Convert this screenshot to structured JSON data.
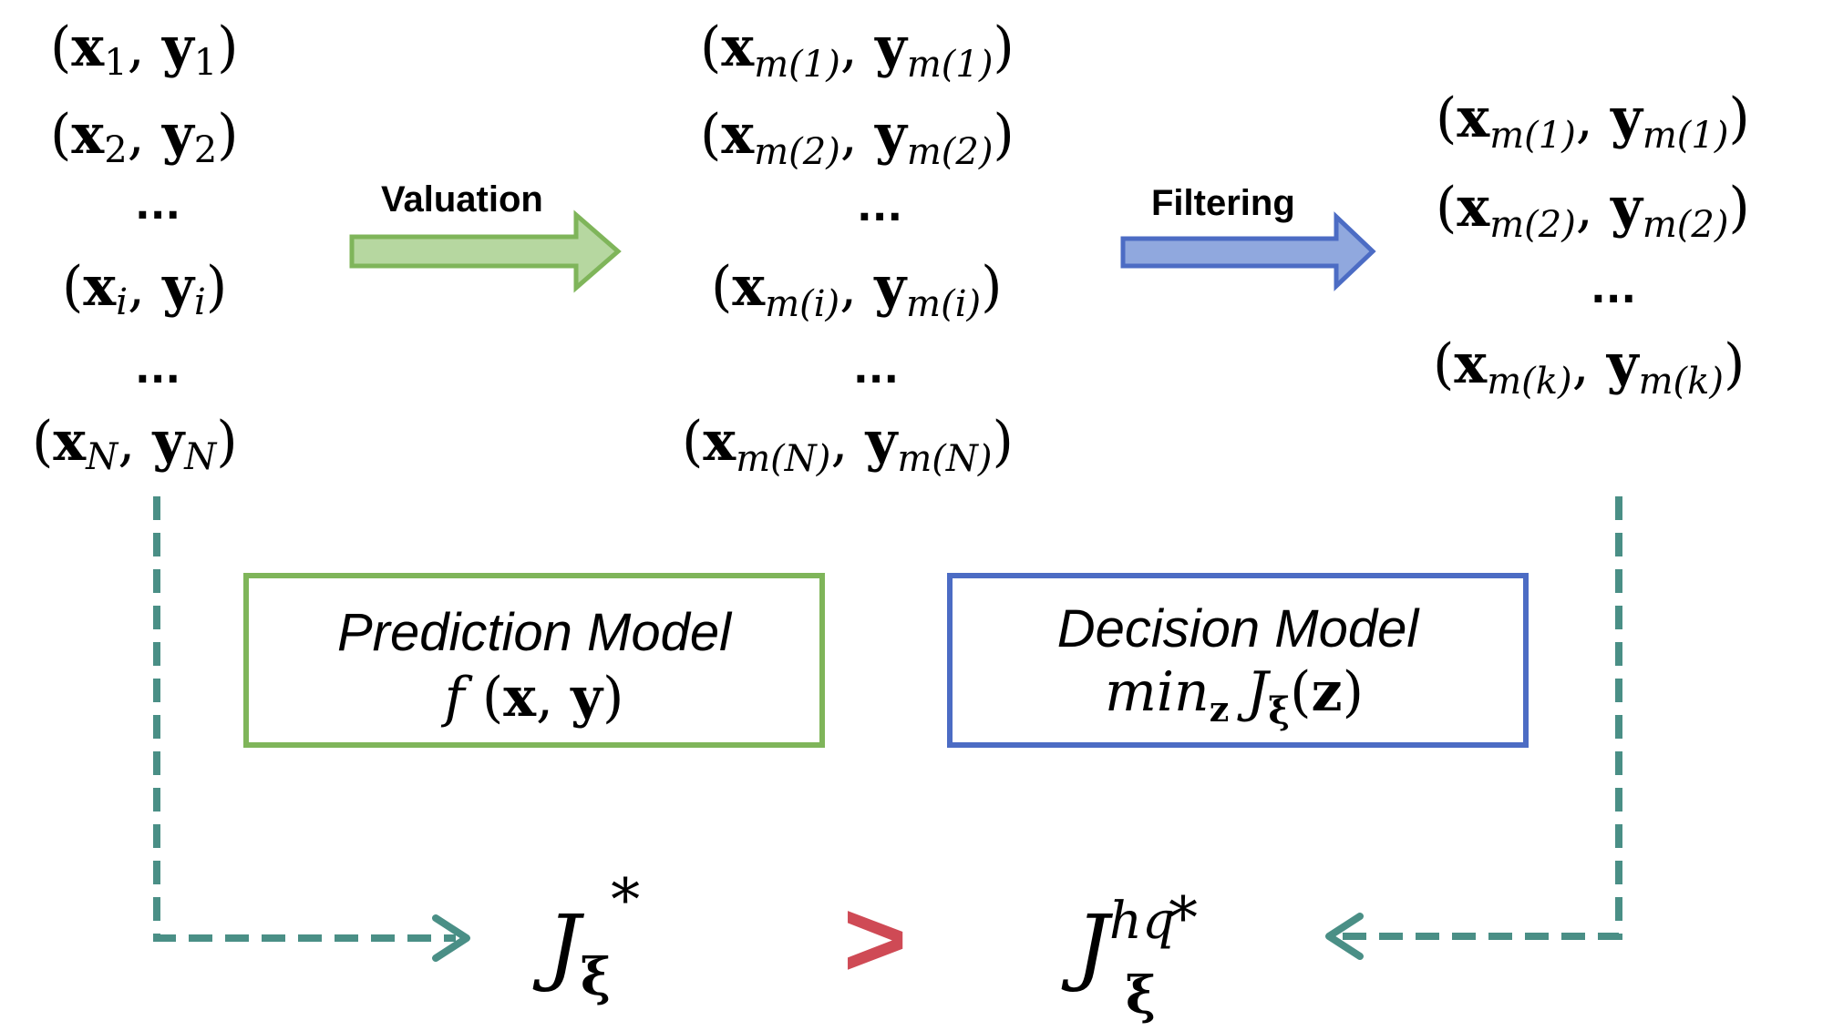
{
  "left_column": {
    "pairs": [
      {
        "x": "x",
        "y": "y",
        "sub": "1"
      },
      {
        "x": "x",
        "y": "y",
        "sub": "2"
      },
      {
        "x": "x",
        "y": "y",
        "sub": "i"
      },
      {
        "x": "x",
        "y": "y",
        "sub": "N"
      }
    ],
    "ellipsis": "..."
  },
  "middle_column": {
    "pairs": [
      {
        "x": "x",
        "y": "y",
        "sub": "m(1)"
      },
      {
        "x": "x",
        "y": "y",
        "sub": "m(2)"
      },
      {
        "x": "x",
        "y": "y",
        "sub": "m(i)"
      },
      {
        "x": "x",
        "y": "y",
        "sub": "m(N)"
      }
    ],
    "ellipsis": "..."
  },
  "right_column": {
    "pairs": [
      {
        "x": "x",
        "y": "y",
        "sub": "m(1)"
      },
      {
        "x": "x",
        "y": "y",
        "sub": "m(2)"
      },
      {
        "x": "x",
        "y": "y",
        "sub": "m(k)"
      }
    ],
    "ellipsis": "..."
  },
  "arrows": {
    "valuation_label": "Valuation",
    "filtering_label": "Filtering"
  },
  "prediction_box": {
    "title": "Prediction Model",
    "formula_f": "f",
    "formula_x": "x",
    "formula_y": "y"
  },
  "decision_box": {
    "title": "Decision Model",
    "formula_min": "min",
    "formula_sub": "z",
    "formula_J": "J",
    "formula_xi": "ξ",
    "formula_arg": "z"
  },
  "bottom": {
    "left_J": "J",
    "left_sub": "ξ",
    "left_star": "*",
    "comparator": ">",
    "right_J": "J",
    "right_sup": "hq",
    "right_sub": "ξ",
    "right_star": "*"
  },
  "colors": {
    "green_fill": "#b6d7a0",
    "green_stroke": "#7fb55a",
    "blue_fill": "#90a8de",
    "blue_stroke": "#4c6cc4",
    "teal_dash": "#4a8f86",
    "red_comparator": "#cf4a55"
  }
}
